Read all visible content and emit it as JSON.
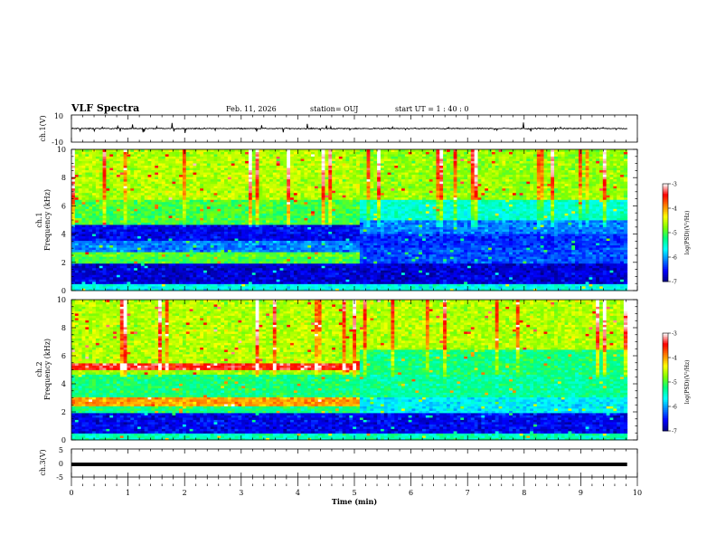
{
  "header": {
    "title": "VLF Spectra",
    "date": "Feb. 11, 2026",
    "station": "station= OUJ",
    "start_ut": "start  UT =   1 : 40 : 0"
  },
  "chart_data": [
    {
      "type": "line",
      "panel": "ch1-waveform",
      "ylabel": "ch.1(V)",
      "ylim": [
        -10,
        10
      ],
      "yticks": [
        "10",
        "-10"
      ],
      "xlim": [
        0,
        10
      ],
      "series": [
        {
          "baseline": 0,
          "noise_amplitude": 1,
          "spike_amplitude": 4,
          "color": "#000000"
        }
      ]
    },
    {
      "type": "heatmap",
      "panel": "ch1-spectrogram",
      "ylabel": "Frequency (kHz)",
      "channel": "ch.1",
      "ylim": [
        0,
        10
      ],
      "xlim": [
        0,
        10
      ],
      "yticks": [
        "0",
        "2",
        "4",
        "6",
        "8",
        "10"
      ],
      "data_end_min": 9.82,
      "transition_min": 5.05,
      "bands_before": [
        {
          "f0": 0.0,
          "f1": 0.5,
          "level": -5.6
        },
        {
          "f0": 0.5,
          "f1": 2.0,
          "level": -6.7
        },
        {
          "f0": 2.0,
          "f1": 2.4,
          "level": -5.0
        },
        {
          "f0": 2.4,
          "f1": 2.7,
          "level": -4.9
        },
        {
          "f0": 2.7,
          "f1": 3.5,
          "level": -6.1
        },
        {
          "f0": 3.5,
          "f1": 4.7,
          "level": -6.6
        },
        {
          "f0": 4.7,
          "f1": 6.5,
          "level": -5.0
        },
        {
          "f0": 6.5,
          "f1": 10.0,
          "level": -4.6
        }
      ],
      "bands_after": [
        {
          "f0": 0.0,
          "f1": 0.5,
          "level": -5.6
        },
        {
          "f0": 0.5,
          "f1": 2.0,
          "level": -6.7
        },
        {
          "f0": 2.0,
          "f1": 3.0,
          "level": -6.3
        },
        {
          "f0": 3.0,
          "f1": 4.0,
          "level": -6.4
        },
        {
          "f0": 4.0,
          "f1": 5.0,
          "level": -6.1
        },
        {
          "f0": 5.0,
          "f1": 6.5,
          "level": -5.5
        },
        {
          "f0": 6.5,
          "f1": 10.0,
          "level": -4.7
        }
      ],
      "colorbar": {
        "label": "log(PSD)(V²/Hz)",
        "range": [
          -7,
          -3
        ],
        "ticks": [
          "-3",
          "-4",
          "-5",
          "-6",
          "-7"
        ]
      }
    },
    {
      "type": "heatmap",
      "panel": "ch2-spectrogram",
      "ylabel": "Frequency (kHz)",
      "channel": "ch.2",
      "ylim": [
        0,
        10
      ],
      "xlim": [
        0,
        10
      ],
      "yticks": [
        "0",
        "2",
        "4",
        "6",
        "8",
        "10"
      ],
      "data_end_min": 9.82,
      "transition_min": 5.05,
      "bands_before": [
        {
          "f0": 0.0,
          "f1": 0.5,
          "level": -5.4
        },
        {
          "f0": 0.5,
          "f1": 2.0,
          "level": -6.6
        },
        {
          "f0": 2.0,
          "f1": 2.5,
          "level": -5.2
        },
        {
          "f0": 2.5,
          "f1": 3.0,
          "level": -4.0
        },
        {
          "f0": 3.0,
          "f1": 4.6,
          "level": -5.2
        },
        {
          "f0": 4.6,
          "f1": 5.0,
          "level": -4.7
        },
        {
          "f0": 5.0,
          "f1": 5.5,
          "level": -3.4
        },
        {
          "f0": 5.5,
          "f1": 10.0,
          "level": -4.6
        }
      ],
      "bands_after": [
        {
          "f0": 0.0,
          "f1": 0.5,
          "level": -5.4
        },
        {
          "f0": 0.5,
          "f1": 2.0,
          "level": -6.6
        },
        {
          "f0": 2.0,
          "f1": 3.0,
          "level": -5.7
        },
        {
          "f0": 3.0,
          "f1": 4.6,
          "level": -5.3
        },
        {
          "f0": 4.6,
          "f1": 6.5,
          "level": -5.2
        },
        {
          "f0": 6.5,
          "f1": 10.0,
          "level": -4.6
        }
      ],
      "colorbar": {
        "label": "log(PSD)(V²/Hz)",
        "range": [
          -7,
          -3
        ],
        "ticks": [
          "-3",
          "-4",
          "-5",
          "-6",
          "-7"
        ]
      }
    },
    {
      "type": "line",
      "panel": "ch3-waveform",
      "ylabel": "ch.3(V)",
      "ylim": [
        -5,
        5
      ],
      "yticks": [
        "5",
        "0",
        "-5"
      ],
      "xlim": [
        0,
        10
      ],
      "series": [
        {
          "baseline": -0.5,
          "noise_amplitude": 0,
          "spike_amplitude": 0,
          "color": "#000000"
        }
      ]
    }
  ],
  "xaxis": {
    "label": "Time  (min)",
    "ticks": [
      "0",
      "1",
      "2",
      "3",
      "4",
      "5",
      "6",
      "7",
      "8",
      "9",
      "10"
    ]
  },
  "colormap": [
    "#000080",
    "#0000ff",
    "#0080ff",
    "#00ffff",
    "#00ff80",
    "#80ff00",
    "#ffff00",
    "#ff8000",
    "#ff0000",
    "#ffffff"
  ]
}
